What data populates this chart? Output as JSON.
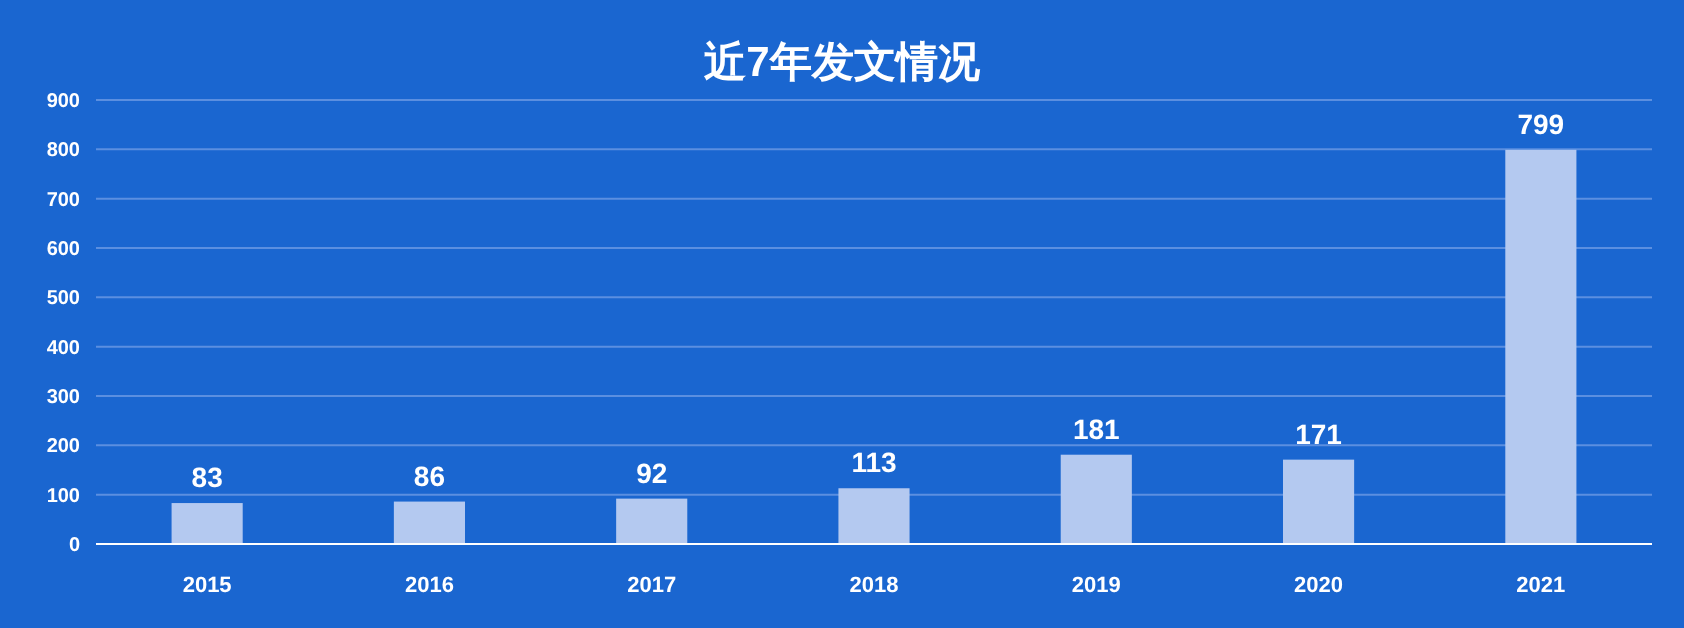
{
  "chart_data": {
    "type": "bar",
    "title": "近7年发文情况",
    "categories": [
      "2015",
      "2016",
      "2017",
      "2018",
      "2019",
      "2020",
      "2021"
    ],
    "values": [
      83,
      86,
      92,
      113,
      181,
      171,
      799
    ],
    "color": "#b4c9f0",
    "ylim": [
      0,
      900
    ],
    "yticks": [
      0,
      100,
      200,
      300,
      400,
      500,
      600,
      700,
      800,
      900
    ],
    "grid": "y",
    "data_labels": true
  }
}
